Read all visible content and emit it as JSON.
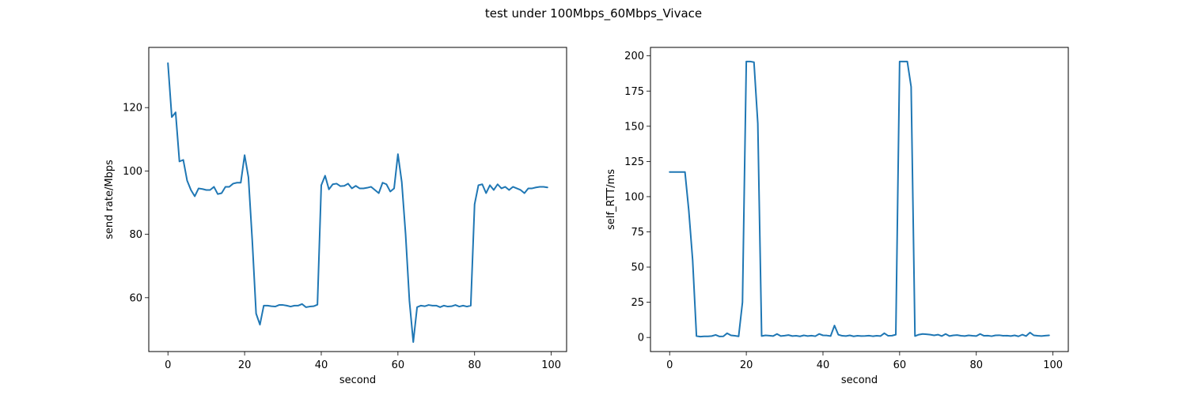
{
  "figure": {
    "title": "test under 100Mbps_60Mbps_Vivace",
    "line_color": "#1f77b4"
  },
  "chart_data": [
    {
      "type": "line",
      "xlabel": "second",
      "ylabel": "send rate/Mbps",
      "xlim": [
        -5,
        104
      ],
      "ylim": [
        43,
        139
      ],
      "xticks": [
        0,
        20,
        40,
        60,
        80,
        100
      ],
      "yticks": [
        60,
        80,
        100,
        120
      ],
      "grid": false,
      "series": [
        {
          "x": [
            0,
            1,
            2,
            3,
            4,
            5,
            6,
            7,
            8,
            9,
            10,
            11,
            12,
            13,
            14,
            15,
            16,
            17,
            18,
            19,
            20,
            21,
            22,
            23,
            24,
            25,
            26,
            27,
            28,
            29,
            30,
            31,
            32,
            33,
            34,
            35,
            36,
            37,
            38,
            39,
            40,
            41,
            42,
            43,
            44,
            45,
            46,
            47,
            48,
            49,
            50,
            51,
            52,
            53,
            54,
            55,
            56,
            57,
            58,
            59,
            60,
            61,
            62,
            63,
            64,
            65,
            66,
            67,
            68,
            69,
            70,
            71,
            72,
            73,
            74,
            75,
            76,
            77,
            78,
            79,
            80,
            81,
            82,
            83,
            84,
            85,
            86,
            87,
            88,
            89,
            90,
            91,
            92,
            93,
            94,
            95,
            96,
            97,
            98,
            99
          ],
          "values": [
            134,
            117,
            118.5,
            103,
            103.5,
            97,
            94,
            92,
            94.5,
            94.3,
            94,
            94,
            95,
            92.7,
            93,
            95,
            95,
            96,
            96.3,
            96.3,
            105,
            98,
            78,
            55,
            51.5,
            57.5,
            57.5,
            57.3,
            57.2,
            57.7,
            57.7,
            57.5,
            57.2,
            57.5,
            57.5,
            58,
            57,
            57.2,
            57.3,
            57.8,
            95.5,
            98.5,
            94.2,
            95.8,
            96,
            95.2,
            95.3,
            96,
            94.5,
            95.3,
            94.5,
            94.5,
            94.7,
            95,
            94,
            93,
            96.3,
            95.8,
            93.5,
            94.5,
            105.3,
            96.5,
            80,
            59,
            46,
            57,
            57.5,
            57.3,
            57.7,
            57.5,
            57.5,
            57,
            57.5,
            57.2,
            57.3,
            57.7,
            57.2,
            57.5,
            57.2,
            57.5,
            89.5,
            95.5,
            95.8,
            93,
            95.5,
            94,
            95.8,
            94.5,
            95,
            94,
            95,
            94.5,
            94,
            93,
            94.5,
            94.5,
            94.8,
            95,
            95,
            94.8
          ]
        }
      ]
    },
    {
      "type": "line",
      "xlabel": "second",
      "ylabel": "self_RTT/ms",
      "xlim": [
        -5,
        104
      ],
      "ylim": [
        -10,
        206
      ],
      "xticks": [
        0,
        20,
        40,
        60,
        80,
        100
      ],
      "yticks": [
        0,
        25,
        50,
        75,
        100,
        125,
        150,
        175,
        200
      ],
      "grid": false,
      "series": [
        {
          "x": [
            0,
            1,
            2,
            3,
            4,
            5,
            6,
            7,
            8,
            9,
            10,
            11,
            12,
            13,
            14,
            15,
            16,
            17,
            18,
            19,
            20,
            21,
            22,
            23,
            24,
            25,
            26,
            27,
            28,
            29,
            30,
            31,
            32,
            33,
            34,
            35,
            36,
            37,
            38,
            39,
            40,
            41,
            42,
            43,
            44,
            45,
            46,
            47,
            48,
            49,
            50,
            51,
            52,
            53,
            54,
            55,
            56,
            57,
            58,
            59,
            60,
            61,
            62,
            63,
            64,
            65,
            66,
            67,
            68,
            69,
            70,
            71,
            72,
            73,
            74,
            75,
            76,
            77,
            78,
            79,
            80,
            81,
            82,
            83,
            84,
            85,
            86,
            87,
            88,
            89,
            90,
            91,
            92,
            93,
            94,
            95,
            96,
            97,
            98,
            99
          ],
          "values": [
            117.5,
            117.5,
            117.5,
            117.5,
            117.5,
            90,
            55,
            1,
            0.6,
            0.8,
            0.8,
            1,
            1.8,
            0.7,
            0.8,
            3,
            1.5,
            1.2,
            0.8,
            25,
            196,
            196,
            195.5,
            152,
            1,
            1.5,
            1.3,
            1,
            2.5,
            1,
            1.3,
            1.7,
            1,
            1.2,
            0.8,
            1.5,
            1,
            1.3,
            0.9,
            2.5,
            1.5,
            1.4,
            1,
            8.5,
            2,
            1.2,
            1,
            1.5,
            0.8,
            1.2,
            1,
            1.1,
            1.3,
            0.9,
            1.2,
            1,
            3,
            1.2,
            1.3,
            2,
            196,
            196,
            196,
            178,
            1,
            2,
            2.5,
            2.3,
            2,
            1.5,
            2,
            1,
            2.5,
            1,
            1.5,
            1.7,
            1.2,
            1,
            1.5,
            1.2,
            1,
            2.5,
            1.2,
            1.3,
            0.9,
            1.5,
            1.6,
            1.2,
            1.3,
            1,
            1.5,
            0.8,
            2,
            1,
            3.5,
            1.5,
            1.2,
            1,
            1.3,
            1.5
          ]
        }
      ]
    }
  ]
}
